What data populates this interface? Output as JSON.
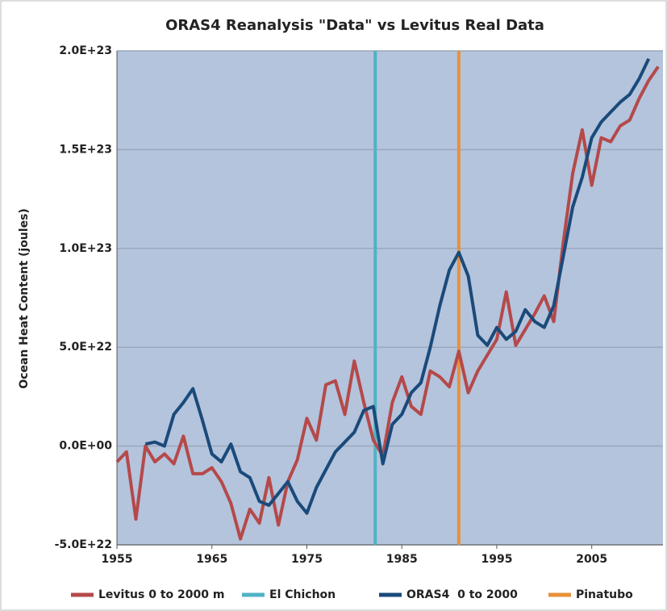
{
  "chart_data": {
    "type": "line",
    "title": "ORAS4 Reanalysis \"Data\" vs Levitus Real Data",
    "y_label": "Ocean Heat Content (joules)",
    "xlim": [
      1955,
      2012.5
    ],
    "xticks": [
      1955,
      1965,
      1975,
      1985,
      1995,
      2005
    ],
    "ylim": [
      -5e+22,
      2e+23
    ],
    "yticks": [
      {
        "value": -5e+22,
        "label": "-5.0E+22"
      },
      {
        "value": 0,
        "label": "0.0E+00"
      },
      {
        "value": 5e+22,
        "label": "5.0E+22"
      },
      {
        "value": 1e+23,
        "label": "1.0E+23"
      },
      {
        "value": 1.5e+23,
        "label": "1.5E+23"
      },
      {
        "value": 2e+23,
        "label": "2.0E+23"
      }
    ],
    "grid": true,
    "legend": "bottom",
    "series": [
      {
        "name": "Levitus 0 to 2000 m",
        "color": "#b5494a",
        "x": [
          1955,
          1956,
          1957,
          1958,
          1959,
          1960,
          1961,
          1962,
          1963,
          1964,
          1965,
          1966,
          1967,
          1968,
          1969,
          1970,
          1971,
          1972,
          1973,
          1974,
          1975,
          1976,
          1977,
          1978,
          1979,
          1980,
          1981,
          1982,
          1983,
          1984,
          1985,
          1986,
          1987,
          1988,
          1989,
          1990,
          1991,
          1992,
          1993,
          1994,
          1995,
          1996,
          1997,
          1998,
          1999,
          2000,
          2001,
          2002,
          2003,
          2004,
          2005,
          2006,
          2007,
          2008,
          2009,
          2010,
          2011,
          2012
        ],
        "values": [
          -8e+21,
          -3e+21,
          -3.7e+22,
          0,
          -8e+21,
          -4e+21,
          -9e+21,
          5e+21,
          -1.4e+22,
          -1.4e+22,
          -1.1e+22,
          -1.8e+22,
          -2.9e+22,
          -4.7e+22,
          -3.2e+22,
          -3.9e+22,
          -1.6e+22,
          -4e+22,
          -1.8e+22,
          -7e+21,
          1.4e+22,
          3e+21,
          3.1e+22,
          3.3e+22,
          1.6e+22,
          4.3e+22,
          2.2e+22,
          3e+21,
          -5e+21,
          2.2e+22,
          3.5e+22,
          2e+22,
          1.6e+22,
          3.8e+22,
          3.5e+22,
          3e+22,
          4.8e+22,
          2.7e+22,
          3.8e+22,
          4.6e+22,
          5.4e+22,
          7.8e+22,
          5.1e+22,
          5.9e+22,
          6.7e+22,
          7.6e+22,
          6.3e+22,
          1.03e+23,
          1.38e+23,
          1.6e+23,
          1.32e+23,
          1.56e+23,
          1.54e+23,
          1.62e+23,
          1.65e+23,
          1.76e+23,
          1.85e+23,
          1.92e+23
        ]
      },
      {
        "name": "El Chichon",
        "color": "#4fb3c4",
        "type": "vline",
        "x": 1982.2
      },
      {
        "name": "ORAS4  0 to 2000",
        "color": "#1a4a7a",
        "x": [
          1958,
          1959,
          1960,
          1961,
          1962,
          1963,
          1964,
          1965,
          1966,
          1967,
          1968,
          1969,
          1970,
          1971,
          1972,
          1973,
          1974,
          1975,
          1976,
          1977,
          1978,
          1979,
          1980,
          1981,
          1982,
          1983,
          1984,
          1985,
          1986,
          1987,
          1988,
          1989,
          1990,
          1991,
          1992,
          1993,
          1994,
          1995,
          1996,
          1997,
          1998,
          1999,
          2000,
          2001,
          2002,
          2003,
          2004,
          2005,
          2006,
          2007,
          2008,
          2009,
          2010,
          2011
        ],
        "values": [
          1e+21,
          2e+21,
          0,
          1.6e+22,
          2.2e+22,
          2.9e+22,
          1.3e+22,
          -4e+21,
          -8e+21,
          1e+21,
          -1.3e+22,
          -1.6e+22,
          -2.8e+22,
          -3e+22,
          -2.4e+22,
          -1.8e+22,
          -2.8e+22,
          -3.4e+22,
          -2.1e+22,
          -1.2e+22,
          -3e+21,
          2e+21,
          7e+21,
          1.8e+22,
          2e+22,
          -9e+21,
          1.1e+22,
          1.6e+22,
          2.7e+22,
          3.2e+22,
          5e+22,
          7.1e+22,
          8.9e+22,
          9.8e+22,
          8.6e+22,
          5.6e+22,
          5.1e+22,
          6e+22,
          5.4e+22,
          5.8e+22,
          6.9e+22,
          6.3e+22,
          6e+22,
          7.1e+22,
          9.6e+22,
          1.21e+23,
          1.36e+23,
          1.56e+23,
          1.64e+23,
          1.69e+23,
          1.74e+23,
          1.78e+23,
          1.86e+23,
          1.96e+23
        ]
      },
      {
        "name": "Pinatubo",
        "color": "#e8913a",
        "type": "vline",
        "x": 1991.0
      }
    ]
  }
}
